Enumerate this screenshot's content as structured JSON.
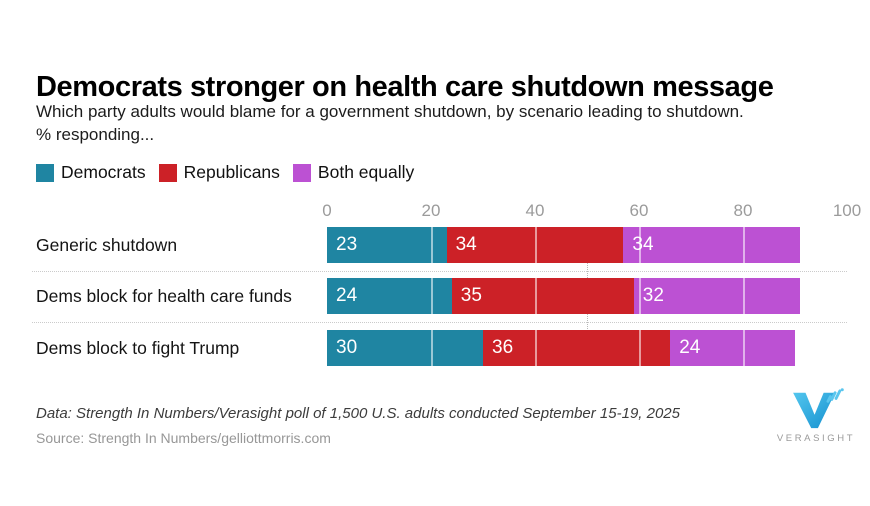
{
  "header": {
    "title": "Democrats stronger on health care shutdown message",
    "subtitle_line1": "Which party adults would blame for a government shutdown, by scenario leading to shutdown.",
    "subtitle_line2": "% responding..."
  },
  "legend": [
    {
      "label": "Democrats",
      "color": "#1f85a2"
    },
    {
      "label": "Republicans",
      "color": "#cc2127"
    },
    {
      "label": "Both equally",
      "color": "#bc51d3"
    }
  ],
  "chart_data": {
    "type": "bar",
    "stacked": true,
    "orientation": "horizontal",
    "title": "Democrats stronger on health care shutdown message",
    "categories": [
      "Generic shutdown",
      "Dems block for health care funds",
      "Dems block to fight Trump"
    ],
    "series": [
      {
        "name": "Democrats",
        "color": "#1f85a2",
        "values": [
          23,
          24,
          30
        ]
      },
      {
        "name": "Republicans",
        "color": "#cc2127",
        "values": [
          34,
          35,
          36
        ]
      },
      {
        "name": "Both equally",
        "color": "#bc51d3",
        "values": [
          34,
          32,
          24
        ]
      }
    ],
    "x_ticks": [
      0,
      20,
      40,
      60,
      80,
      100
    ],
    "xlim": [
      0,
      100
    ],
    "gridlines_over_bars": [
      20,
      40,
      60,
      80
    ],
    "reference_line": 50,
    "legend_position": "top-left",
    "value_labels": "inside-start"
  },
  "footer": {
    "data_note": "Data: Strength In Numbers/Verasight poll of 1,500 U.S. adults conducted September 15-19, 2025",
    "source_note": "Source: Strength In Numbers/gelliottmorris.com",
    "logo_text": "VERASIGHT"
  },
  "icons": {
    "logo_mark": "verasight-v-icon"
  }
}
